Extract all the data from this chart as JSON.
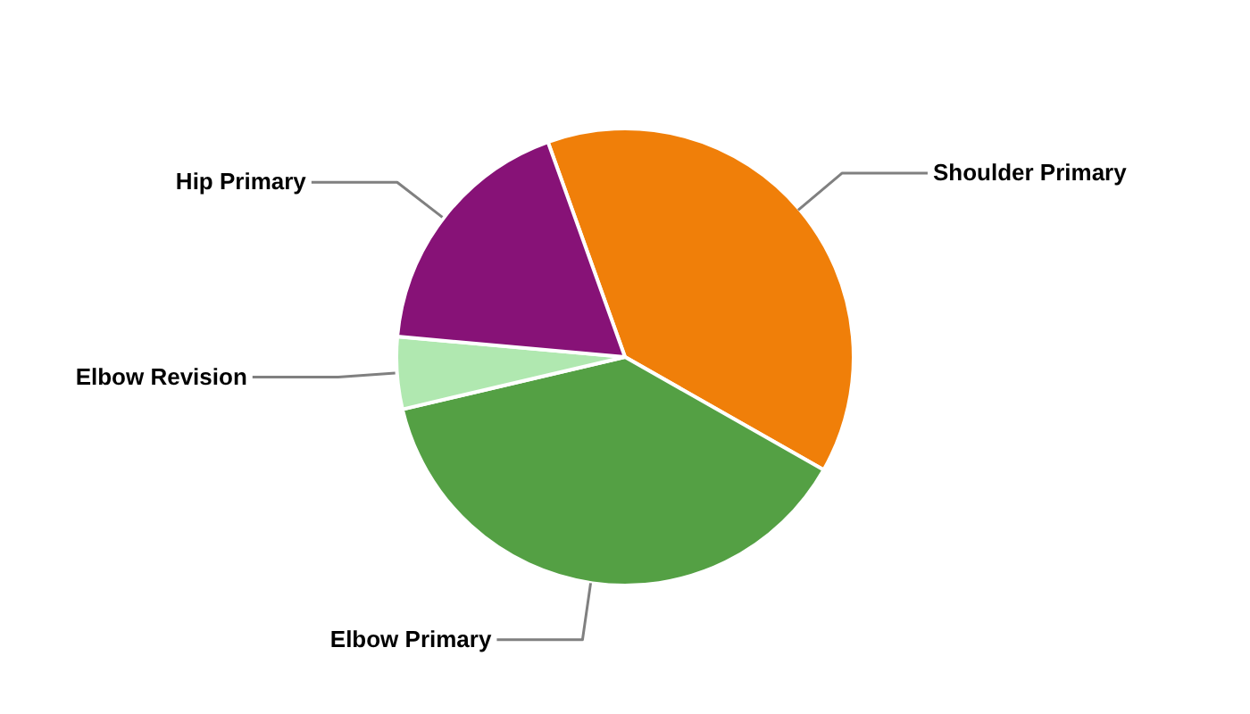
{
  "chart_data": {
    "type": "pie",
    "categories": [
      "Shoulder Primary",
      "Elbow Primary",
      "Elbow Revision",
      "Hip Primary"
    ],
    "values": [
      38.7,
      38.1,
      5.1,
      18.1
    ],
    "colors": [
      "#f07f09",
      "#54a044",
      "#b0e8b0",
      "#871277"
    ]
  }
}
